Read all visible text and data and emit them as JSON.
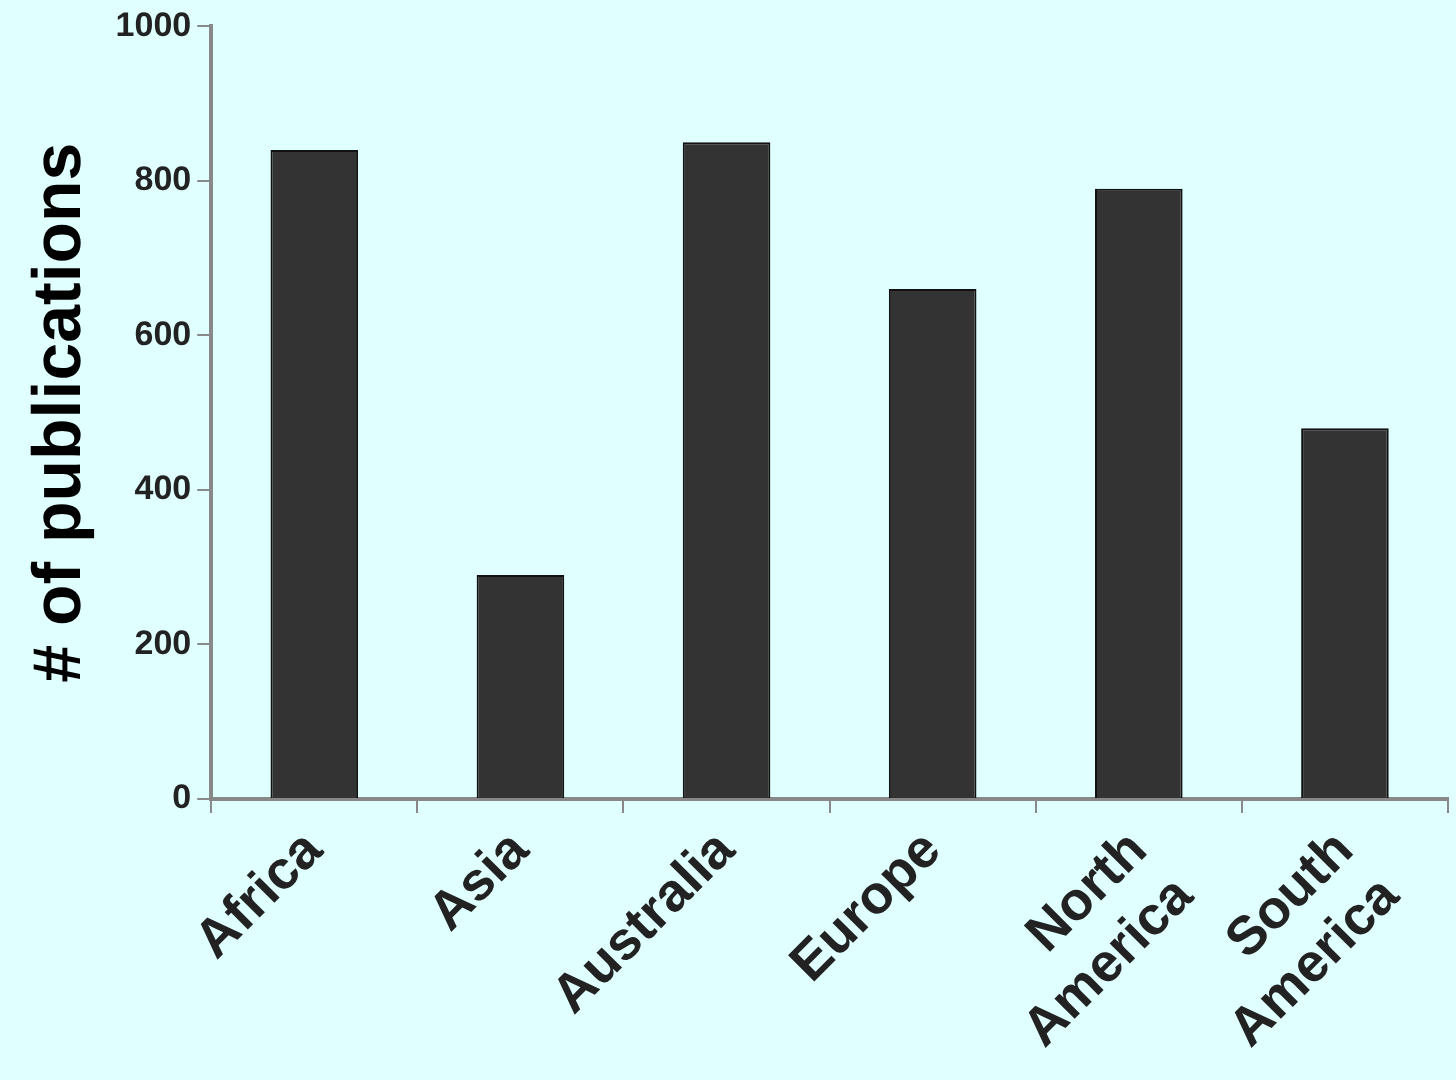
{
  "chart_data": {
    "type": "bar",
    "ylabel": "# of publications",
    "categories": [
      "Africa",
      "Asia",
      "Australia",
      "Europe",
      "North America",
      "South America"
    ],
    "values": [
      840,
      290,
      850,
      660,
      790,
      480
    ],
    "color": "#333333",
    "ylim": [
      0,
      1000
    ],
    "yticks": [
      0,
      200,
      400,
      600,
      800,
      1000
    ],
    "grid": false,
    "legend": false
  }
}
